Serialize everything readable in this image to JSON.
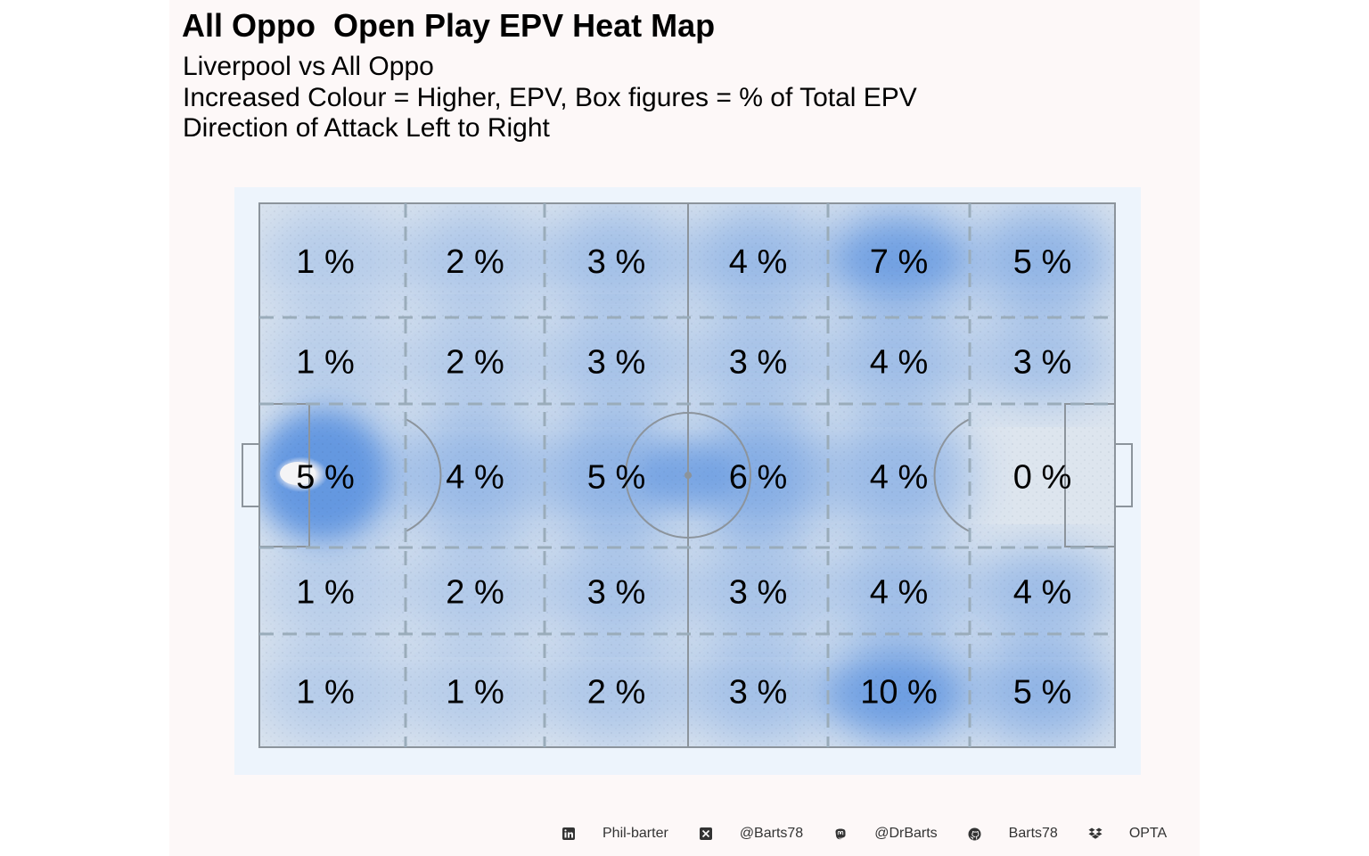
{
  "header": {
    "title": "All Oppo  Open Play EPV Heat Map",
    "subtitle_lines": [
      "Liverpool vs All Oppo",
      "Increased Colour = Higher, EPV, Box figures = % of Total EPV",
      "Direction of Attack Left to Right"
    ]
  },
  "chart_data": {
    "type": "heatmap",
    "title": "All Oppo  Open Play EPV Heat Map",
    "xlabel": "",
    "ylabel": "",
    "direction": "left-to-right",
    "grid": true,
    "value_unit": " %",
    "x_bins": 6,
    "y_bins": 5,
    "zones": [
      [
        1,
        2,
        3,
        4,
        7,
        5
      ],
      [
        1,
        2,
        3,
        3,
        4,
        3
      ],
      [
        5,
        4,
        5,
        6,
        4,
        0
      ],
      [
        1,
        2,
        3,
        3,
        4,
        4
      ],
      [
        1,
        1,
        2,
        3,
        10,
        5
      ]
    ],
    "colors": {
      "pitch_bg": "#edf4fc",
      "pitch_fill": "#dde5ee",
      "density": "#5b93e0",
      "hotspot": "#f4f4f6",
      "lines": "#8c949c",
      "zone_lines": "#9aacba"
    }
  },
  "caption": [
    {
      "icon": "linkedin-icon",
      "text": "Phil-barter"
    },
    {
      "icon": "x-twitter-icon",
      "text": "@Barts78"
    },
    {
      "icon": "mastodon-icon",
      "text": "@DrBarts"
    },
    {
      "icon": "github-icon",
      "text": "Barts78"
    },
    {
      "icon": "dropbox-icon",
      "text": "OPTA"
    }
  ]
}
